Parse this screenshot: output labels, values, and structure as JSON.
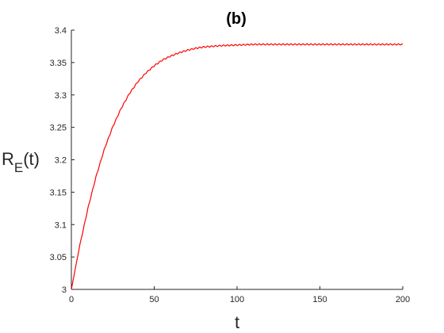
{
  "chart_data": {
    "type": "line",
    "title": "(b)",
    "xlabel": "t",
    "ylabel": {
      "main": "R",
      "sub": "E",
      "suffix": "(t)"
    },
    "xlim": [
      0,
      200
    ],
    "ylim": [
      3,
      3.4
    ],
    "xticks": [
      "0",
      "50",
      "100",
      "150",
      "200"
    ],
    "yticks": [
      "3",
      "3.05",
      "3.1",
      "3.15",
      "3.2",
      "3.25",
      "3.3",
      "3.35",
      "3.4"
    ],
    "grid": false,
    "series": [
      {
        "color": "#ff0000",
        "x": [
          0,
          5,
          10,
          15,
          20,
          25,
          30,
          35,
          40,
          45,
          50,
          55,
          60,
          65,
          70,
          75,
          80,
          90,
          100,
          110,
          120,
          130,
          140,
          150,
          160,
          170,
          180,
          190,
          200
        ],
        "y": [
          3.0,
          3.067,
          3.125,
          3.175,
          3.217,
          3.251,
          3.279,
          3.302,
          3.32,
          3.334,
          3.345,
          3.354,
          3.36,
          3.365,
          3.369,
          3.372,
          3.374,
          3.376,
          3.377,
          3.378,
          3.378,
          3.378,
          3.378,
          3.378,
          3.378,
          3.378,
          3.378,
          3.378,
          3.378
        ]
      }
    ]
  }
}
